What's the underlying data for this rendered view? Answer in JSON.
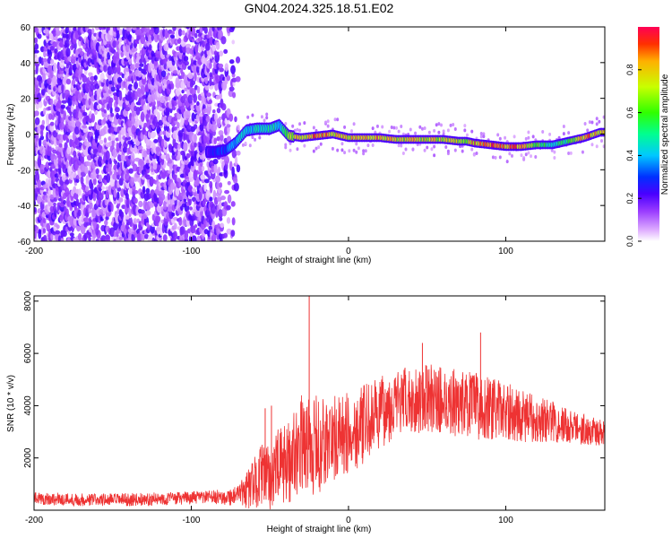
{
  "page": {
    "title": "GN04.2024.325.18.51.E02"
  },
  "colors": {
    "snr_line": "#ee3333",
    "spectrogram_background": "#ffffff",
    "colormap": [
      "#ffffff",
      "#d6b0ff",
      "#8a2be2",
      "#5a00d0",
      "#0000ff",
      "#00c8ff",
      "#00ff80",
      "#40ff00",
      "#c0ff00",
      "#ffc000",
      "#ff3000",
      "#ff0000"
    ]
  },
  "chart_data": [
    {
      "type": "heatmap",
      "title": "GN04.2024.325.18.51.E02",
      "xlabel": "Height of straight line (km)",
      "ylabel": "Frequency (Hz)",
      "xlim": [
        -200,
        163
      ],
      "ylim": [
        -60,
        60
      ],
      "x_ticks": [
        -200,
        -100,
        0,
        100
      ],
      "y_ticks": [
        -60,
        -40,
        -20,
        0,
        20,
        40,
        60
      ],
      "x_tick_labels": [
        "-200",
        "-100",
        "0",
        "100"
      ],
      "y_tick_labels": [
        "-60",
        "-40",
        "-20",
        "0",
        "20",
        "40",
        "60"
      ],
      "colorbar": {
        "label": "Normalized spectral amplitude",
        "range": [
          0,
          1
        ],
        "ticks": [
          0.0,
          0.2,
          0.4,
          0.6,
          0.8
        ],
        "tick_labels": [
          "0.0",
          "0.2",
          "0.4",
          "0.6",
          "0.8"
        ]
      },
      "ridge": {
        "description_values": "peak frequency (Hz) vs height (km)",
        "height": [
          -90,
          -85,
          -78,
          -72,
          -65,
          -58,
          -50,
          -44,
          -38,
          -30,
          -20,
          -10,
          0,
          10,
          20,
          30,
          40,
          50,
          60,
          70,
          75,
          80,
          90,
          100,
          110,
          120,
          130,
          140,
          150,
          160
        ],
        "frequency": [
          -10,
          -10,
          -9,
          -5,
          2,
          3,
          3,
          5,
          -1,
          -2,
          -1,
          0,
          -2,
          -2,
          -2,
          -3,
          -3,
          -3,
          -3,
          -4,
          -4,
          -5,
          -6,
          -7,
          -7,
          -6,
          -6,
          -4,
          -2,
          1
        ],
        "amplitude": [
          0.25,
          0.3,
          0.35,
          0.45,
          0.5,
          0.5,
          0.55,
          0.5,
          0.7,
          0.9,
          0.95,
          0.9,
          0.85,
          0.9,
          0.9,
          0.85,
          0.85,
          0.85,
          0.8,
          0.85,
          0.8,
          0.9,
          0.95,
          0.95,
          0.95,
          0.7,
          0.55,
          0.6,
          0.95,
          0.85
        ]
      },
      "noise_region": {
        "height_range": [
          -200,
          -70
        ],
        "frequency_range": [
          -60,
          60
        ],
        "amplitude_range": [
          0,
          0.15
        ]
      }
    },
    {
      "type": "line",
      "xlabel": "Height of straight line (km)",
      "ylabel": "SNR (10 * v/v)",
      "xlim": [
        -200,
        163
      ],
      "ylim": [
        0,
        8200
      ],
      "x_ticks": [
        -200,
        -100,
        0,
        100
      ],
      "y_ticks": [
        2000,
        4000,
        6000,
        8000
      ],
      "x_tick_labels": [
        "-200",
        "-100",
        "0",
        "100"
      ],
      "y_tick_labels": [
        "2000",
        "4000",
        "6000",
        "8000"
      ],
      "envelope": {
        "description_values": "approximate SNR trend and spread vs height (km)",
        "x": [
          -200,
          -170,
          -140,
          -110,
          -90,
          -80,
          -70,
          -62,
          -55,
          -50,
          -45,
          -40,
          -30,
          -20,
          -10,
          0,
          10,
          20,
          30,
          40,
          50,
          60,
          70,
          80,
          90,
          100,
          110,
          120,
          130,
          140,
          150,
          163
        ],
        "center": [
          450,
          400,
          400,
          450,
          500,
          500,
          550,
          900,
          1400,
          1200,
          1700,
          1700,
          2600,
          2400,
          2700,
          2900,
          3300,
          3700,
          4100,
          4200,
          4300,
          4200,
          4100,
          4000,
          3900,
          3800,
          3600,
          3500,
          3400,
          3200,
          3100,
          2900
        ],
        "spread": [
          250,
          250,
          250,
          250,
          250,
          300,
          400,
          900,
          1200,
          1200,
          1400,
          1600,
          1800,
          2000,
          1700,
          1600,
          1500,
          1400,
          1300,
          1300,
          1300,
          1300,
          1300,
          1300,
          1200,
          1100,
          1000,
          900,
          800,
          700,
          600,
          500
        ]
      },
      "spikes": [
        {
          "x": -25,
          "y": 8200
        },
        {
          "x": 47,
          "y": 6400
        },
        {
          "x": 84,
          "y": 6800
        },
        {
          "x": -53,
          "y": 3900
        },
        {
          "x": -49,
          "y": 4000
        }
      ]
    }
  ]
}
